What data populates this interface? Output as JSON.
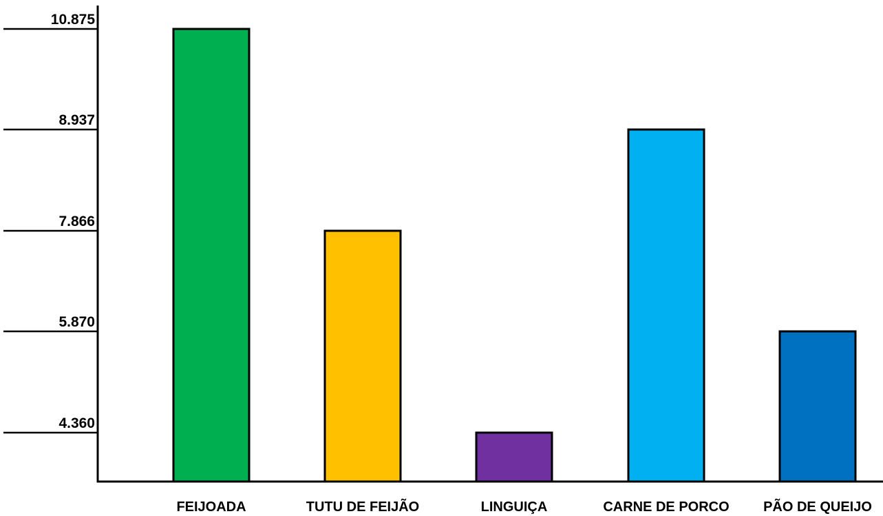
{
  "chart_data": {
    "type": "bar",
    "title": "",
    "xlabel": "",
    "ylabel": "",
    "categories": [
      "FEIJOADA",
      "TUTU DE FEIJÃO",
      "LINGUIÇA",
      "CARNE DE PORCO",
      "PÃO DE QUEIJO"
    ],
    "values": [
      10.875,
      7.866,
      4.36,
      8.937,
      5.87
    ],
    "value_labels": [
      "10.875",
      "7.866",
      "4.360",
      "8.937",
      "5.870"
    ],
    "colors": [
      "#00B050",
      "#FFC000",
      "#7030A0",
      "#00B0F0",
      "#0070C0"
    ],
    "ytick_labels": [
      "10.875",
      "8.937",
      "7.866",
      "5.870",
      "4.360"
    ],
    "grid": false,
    "legend": "none"
  }
}
